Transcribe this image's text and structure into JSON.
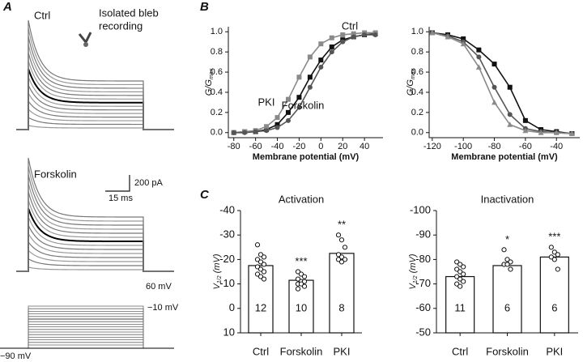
{
  "panel_labels": [
    "A",
    "B",
    "C"
  ],
  "panel_a": {
    "top_label": "Ctrl",
    "bleb_label": [
      "Isolated bleb",
      "recording"
    ],
    "middle_label": "Forskolin",
    "scale_current": "200 pA",
    "scale_time": "15 ms",
    "protocol_top": "60 mV",
    "protocol_mid": "−10 mV",
    "protocol_hold": "−90 mV"
  },
  "chart_data": [
    {
      "type": "line",
      "xlabel": "Membrane potential (mV)",
      "ylabel": [
        {
          "text": "G/G"
        },
        {
          "text": "max",
          "sub": true
        }
      ],
      "x": [
        -80,
        -70,
        -60,
        -50,
        -40,
        -30,
        -20,
        -10,
        0,
        10,
        20,
        30,
        40,
        50
      ],
      "xlim": [
        -85,
        57
      ],
      "xticks": [
        -80,
        -60,
        -40,
        -20,
        0,
        20,
        40
      ],
      "ylim": [
        -0.05,
        1.05
      ],
      "yticks": [
        {
          "value": 0,
          "label": "0.0"
        },
        0.2,
        0.4,
        0.6,
        0.8,
        {
          "value": 1,
          "label": "1.0"
        }
      ],
      "series": [
        {
          "name": "Ctrl",
          "color": "#111111",
          "marker": "square",
          "values": [
            0,
            0.01,
            0.01,
            0.03,
            0.08,
            0.2,
            0.35,
            0.55,
            0.72,
            0.85,
            0.92,
            0.95,
            0.97,
            0.98
          ]
        },
        {
          "name": "PKI",
          "color": "#8a8a8a",
          "marker": "square",
          "values": [
            0,
            0.01,
            0.02,
            0.06,
            0.15,
            0.33,
            0.55,
            0.75,
            0.88,
            0.94,
            0.97,
            0.98,
            0.99,
            0.99
          ]
        },
        {
          "name": "Forskolin",
          "color": "#555555",
          "marker": "circle",
          "values": [
            0,
            0,
            0.01,
            0.02,
            0.05,
            0.12,
            0.25,
            0.45,
            0.65,
            0.8,
            0.9,
            0.95,
            0.97,
            0.97
          ]
        }
      ]
    },
    {
      "type": "line",
      "xlabel": "Membrane potential (mV)",
      "ylabel": [
        {
          "text": "G/G"
        },
        {
          "text": "max",
          "sub": true
        }
      ],
      "x": [
        -120,
        -110,
        -100,
        -90,
        -80,
        -70,
        -60,
        -50,
        -40,
        -30
      ],
      "xlim": [
        -122,
        -25
      ],
      "xticks": [
        -120,
        -100,
        -80,
        -60,
        -40
      ],
      "ylim": [
        -0.05,
        1.05
      ],
      "yticks": [
        {
          "value": 0,
          "label": "0.0"
        },
        0.2,
        0.4,
        0.6,
        0.8,
        {
          "value": 1,
          "label": "1.0"
        }
      ],
      "series": [
        {
          "color": "#111111",
          "marker": "square",
          "values": [
            0.99,
            0.97,
            0.93,
            0.82,
            0.68,
            0.45,
            0.12,
            0.03,
            0.01,
            -0.01
          ]
        },
        {
          "color": "#555555",
          "marker": "circle",
          "values": [
            0.99,
            0.96,
            0.9,
            0.75,
            0.45,
            0.18,
            0.04,
            0.01,
            0,
            -0.01
          ]
        },
        {
          "color": "#8a8a8a",
          "marker": "triangle",
          "values": [
            0.99,
            0.95,
            0.88,
            0.65,
            0.3,
            0.08,
            0.02,
            0,
            0,
            -0.01
          ]
        }
      ]
    },
    {
      "type": "bar",
      "title": "Activation",
      "ylabel": [
        {
          "text": "V"
        },
        {
          "text": "1/2",
          "sub": true
        },
        {
          "text": " (mV)"
        }
      ],
      "categories": [
        "Ctrl",
        "Forskolin",
        "PKI"
      ],
      "values": [
        -17.5,
        -11.5,
        -22.5
      ],
      "n": [
        12,
        10,
        8
      ],
      "significance": [
        null,
        "***",
        "**"
      ],
      "points": [
        [
          -26,
          -22,
          -21,
          -20,
          -19,
          -18,
          -17,
          -16,
          -15,
          -14,
          -13,
          -12
        ],
        [
          -15,
          -14,
          -13,
          -12,
          -11,
          -11,
          -10,
          -10,
          -9,
          -8
        ],
        [
          -30,
          -28,
          -25,
          -22,
          -21,
          -20,
          -20,
          -19
        ]
      ],
      "ylim": [
        10,
        -40
      ],
      "yticks": [
        10,
        0,
        -10,
        -20,
        -30,
        -40
      ]
    },
    {
      "type": "bar",
      "title": "Inactivation",
      "ylabel": [
        {
          "text": "V"
        },
        {
          "text": "1/2",
          "sub": true
        },
        {
          "text": " (mV)"
        }
      ],
      "categories": [
        "Ctrl",
        "Forskolin",
        "PKI"
      ],
      "values": [
        -73,
        -77.5,
        -81
      ],
      "n": [
        11,
        6,
        6
      ],
      "significance": [
        null,
        "*",
        "***"
      ],
      "points": [
        [
          -79,
          -78,
          -77,
          -76,
          -75,
          -74,
          -73,
          -72,
          -71,
          -70,
          -69
        ],
        [
          -84,
          -80,
          -79,
          -78,
          -78,
          -76
        ],
        [
          -85,
          -83,
          -82,
          -81,
          -80,
          -76
        ]
      ],
      "ylim": [
        -50,
        -100
      ],
      "yticks": [
        -50,
        -60,
        -70,
        -80,
        -90,
        -100
      ]
    }
  ]
}
